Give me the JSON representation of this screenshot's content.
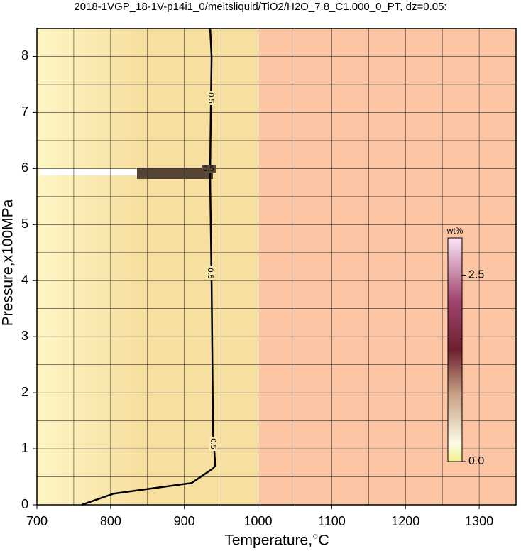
{
  "chart_data": {
    "type": "contour",
    "title": "2018-1VGP_18-1V-p14i1_0/meltsliquid/TiO2/H2O_7.8_C1.000_0_PT, dz=0.05:",
    "x_label": "Temperature,°C",
    "y_label": "Pressure,x100MPa",
    "xlim": [
      700,
      1350
    ],
    "ylim": [
      0,
      8.5
    ],
    "xticks": [
      700,
      800,
      900,
      1000,
      1100,
      1200,
      1300
    ],
    "yticks": [
      0,
      1,
      2,
      3,
      4,
      5,
      6,
      7,
      8
    ],
    "xgrid": [
      700,
      750,
      800,
      850,
      900,
      950,
      1000,
      1050,
      1100,
      1150,
      1200,
      1250,
      1300,
      1350
    ],
    "ygrid": [
      0,
      0.5,
      1,
      1.5,
      2,
      2.5,
      3,
      3.5,
      4,
      4.5,
      5,
      5.5,
      6,
      6.5,
      7,
      7.5,
      8,
      8.5
    ],
    "series": [
      {
        "level": 0.5,
        "color": "#000000",
        "x": [
          760.7,
          804,
          910,
          939,
          942,
          939,
          937,
          935,
          935,
          936,
          937,
          935
        ],
        "y": [
          0,
          0.2,
          0.39,
          0.65,
          0.7,
          1.28,
          3.94,
          5.8,
          5.96,
          7.1,
          7.99,
          8.5
        ]
      }
    ],
    "colorbar": {
      "label": "wt%",
      "clim": [
        0,
        3.0
      ],
      "ticks": [
        {
          "value": 0,
          "label": "0.0"
        },
        2.5
      ]
    }
  }
}
